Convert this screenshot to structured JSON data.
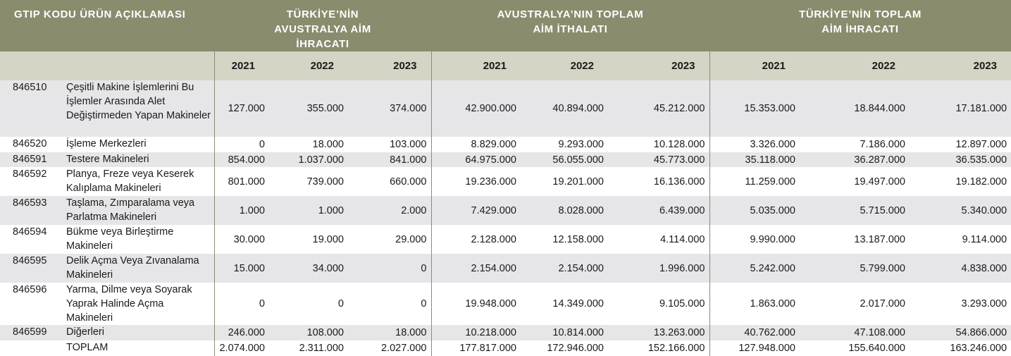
{
  "header": {
    "code_desc": "GTIP KODU ÜRÜN AÇIKLAMASI",
    "groups": [
      "TÜRKİYE’NİN AVUSTRALYA AİM İHRACATI",
      "AVUSTRALYA’NIN  TOPLAM AİM İTHALATI",
      "TÜRKİYE’NİN TOPLAM AİM İHRACATI"
    ],
    "years": [
      "2021",
      "2022",
      "2023",
      "2021",
      "2022",
      "2023",
      "2021",
      "2022",
      "2023"
    ]
  },
  "colors": {
    "header_dark": "#8b8b6e",
    "header_light": "#d5d4c5",
    "row_shade": "#e6e6e9"
  },
  "chart_data": {
    "type": "table",
    "columns": [
      "GTIP KODU",
      "ÜRÜN AÇIKLAMASI",
      "2021",
      "2022",
      "2023",
      "2021",
      "2022",
      "2023",
      "2021",
      "2022",
      "2023"
    ],
    "rows": [
      {
        "code": "846510",
        "desc": "Çeşitli Makine İşlemlerini Bu İşlemler Arasında Alet Değiştirmeden Yapan Makineler",
        "values": [
          "127.000",
          "355.000",
          "374.000",
          "42.900.000",
          "40.894.000",
          "45.212.000",
          "15.353.000",
          "18.844.000",
          "17.181.000"
        ]
      },
      {
        "code": "846520",
        "desc": "İşleme Merkezleri",
        "values": [
          "0",
          "18.000",
          "103.000",
          "8.829.000",
          "9.293.000",
          "10.128.000",
          "3.326.000",
          "7.186.000",
          "12.897.000"
        ]
      },
      {
        "code": "846591",
        "desc": "Testere Makineleri",
        "values": [
          "854.000",
          "1.037.000",
          "841.000",
          "64.975.000",
          "56.055.000",
          "45.773.000",
          "35.118.000",
          "36.287.000",
          "36.535.000"
        ]
      },
      {
        "code": "846592",
        "desc": "Planya, Freze veya Keserek Kalıplama Makineleri",
        "values": [
          "801.000",
          "739.000",
          "660.000",
          "19.236.000",
          "19.201.000",
          "16.136.000",
          "11.259.000",
          "19.497.000",
          "19.182.000"
        ]
      },
      {
        "code": "846593",
        "desc": "Taşlama, Zımparalama veya Parlatma Makineleri",
        "values": [
          "1.000",
          "1.000",
          "2.000",
          "7.429.000",
          "8.028.000",
          "6.439.000",
          "5.035.000",
          "5.715.000",
          "5.340.000"
        ]
      },
      {
        "code": "846594",
        "desc": "Bükme veya Birleştirme Makineleri",
        "values": [
          "30.000",
          "19.000",
          "29.000",
          "2.128.000",
          "12.158.000",
          "4.114.000",
          "9.990.000",
          "13.187.000",
          "9.114.000"
        ]
      },
      {
        "code": "846595",
        "desc": "Delik Açma Veya Zıvanalama Makineleri",
        "values": [
          "15.000",
          "34.000",
          "0",
          "2.154.000",
          "2.154.000",
          "1.996.000",
          "5.242.000",
          "5.799.000",
          "4.838.000"
        ]
      },
      {
        "code": "846596",
        "desc": "Yarma, Dilme veya Soyarak Yaprak Halinde Açma Makineleri",
        "values": [
          "0",
          "0",
          "0",
          "19.948.000",
          "14.349.000",
          "9.105.000",
          "1.863.000",
          "2.017.000",
          "3.293.000"
        ]
      },
      {
        "code": "846599",
        "desc": "Diğerleri",
        "values": [
          "246.000",
          "108.000",
          "18.000",
          "10.218.000",
          "10.814.000",
          "13.263.000",
          "40.762.000",
          "47.108.000",
          "54.866.000"
        ]
      },
      {
        "code": "",
        "desc": "TOPLAM",
        "values": [
          "2.074.000",
          "2.311.000",
          "2.027.000",
          "177.817.000",
          "172.946.000",
          "152.166.000",
          "127.948.000",
          "155.640.000",
          "163.246.000"
        ]
      }
    ]
  }
}
